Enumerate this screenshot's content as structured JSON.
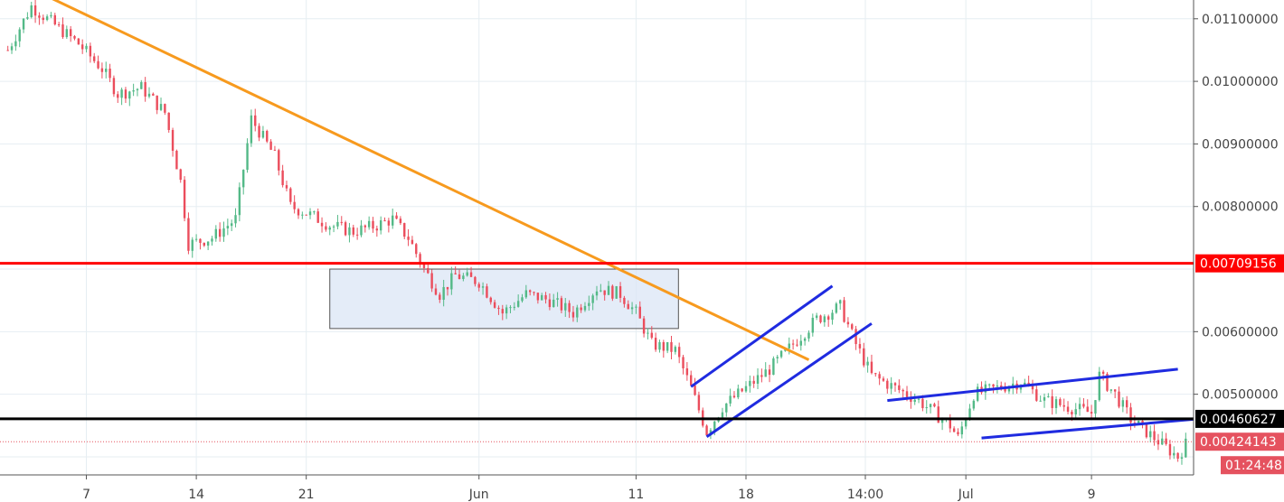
{
  "chart_data": {
    "type": "candlestick",
    "x_axis": {
      "tick_labels": [
        "7",
        "14",
        "21",
        "Jun",
        "11",
        "18",
        "14:00",
        "Jul",
        "9"
      ],
      "tick_days": [
        7,
        14,
        21,
        32,
        42,
        49,
        56.6,
        63,
        71
      ]
    },
    "y_axis": {
      "tick_labels": [
        "0.01100000",
        "0.01000000",
        "0.00900000",
        "0.00800000",
        "0.00600000",
        "0.00500000"
      ],
      "tick_values": [
        0.011,
        0.01,
        0.009,
        0.008,
        0.006,
        0.005
      ],
      "ylim": [
        0.00335,
        0.0113
      ],
      "position": "right"
    },
    "xlim_days": [
      1.5,
      77.5
    ],
    "grid": true,
    "close_path": [
      [
        2,
        0.0105
      ],
      [
        3.5,
        0.0112
      ],
      [
        5,
        0.0109
      ],
      [
        6.5,
        0.0106
      ],
      [
        8,
        0.0102
      ],
      [
        9,
        0.0098
      ],
      [
        10.5,
        0.0099
      ],
      [
        12,
        0.0095
      ],
      [
        13,
        0.0084
      ],
      [
        13.5,
        0.0074
      ],
      [
        15,
        0.0075
      ],
      [
        16.5,
        0.0078
      ],
      [
        17.5,
        0.0094
      ],
      [
        19,
        0.0088
      ],
      [
        20,
        0.008
      ],
      [
        21,
        0.0079
      ],
      [
        22.5,
        0.0077
      ],
      [
        24,
        0.0076
      ],
      [
        25.5,
        0.0077
      ],
      [
        26.5,
        0.0078
      ],
      [
        27.5,
        0.0075
      ],
      [
        28.5,
        0.007
      ],
      [
        29.5,
        0.0066
      ],
      [
        30.5,
        0.0069
      ],
      [
        32,
        0.0068
      ],
      [
        33.5,
        0.0063
      ],
      [
        35,
        0.0066
      ],
      [
        36.5,
        0.0065
      ],
      [
        38,
        0.0063
      ],
      [
        39.5,
        0.0067
      ],
      [
        41,
        0.0066
      ],
      [
        42,
        0.0063
      ],
      [
        43,
        0.0058
      ],
      [
        44.5,
        0.0057
      ],
      [
        45.5,
        0.0051
      ],
      [
        46.5,
        0.0044
      ],
      [
        47.5,
        0.0048
      ],
      [
        49,
        0.0051
      ],
      [
        50.5,
        0.0054
      ],
      [
        52,
        0.0058
      ],
      [
        53.5,
        0.0062
      ],
      [
        55,
        0.0064
      ],
      [
        56,
        0.0058
      ],
      [
        57,
        0.0053
      ],
      [
        58.5,
        0.0051
      ],
      [
        60,
        0.0049
      ],
      [
        61,
        0.0047
      ],
      [
        62,
        0.0045
      ],
      [
        62.5,
        0.0043
      ],
      [
        63.5,
        0.005
      ],
      [
        65,
        0.0051
      ],
      [
        66.5,
        0.0052
      ],
      [
        68,
        0.0049
      ],
      [
        69.5,
        0.0048
      ],
      [
        71,
        0.0047
      ],
      [
        71.5,
        0.0053
      ],
      [
        72.5,
        0.005
      ],
      [
        73.5,
        0.0046
      ],
      [
        74.5,
        0.0044
      ],
      [
        75.5,
        0.0042
      ],
      [
        76.5,
        0.004
      ],
      [
        77,
        0.0042
      ]
    ],
    "horizontal_levels": [
      {
        "price": 0.00709156,
        "label": "0.00709156",
        "color": "#ff0000"
      },
      {
        "price": 0.00460627,
        "label": "0.00460627",
        "color": "#000000"
      }
    ],
    "current_price": {
      "label": "0.00424143",
      "value": 0.00424143,
      "color": "#e5525f",
      "countdown": "01:24:48"
    },
    "trendline": {
      "color": "#f79a1e",
      "points": [
        [
          2.5,
          0.0116
        ],
        [
          53,
          0.00555
        ]
      ]
    },
    "range_box": {
      "x": [
        22.5,
        44.7
      ],
      "y": [
        0.00605,
        0.007
      ],
      "fill": "#dbe6f5",
      "stroke": "#555555"
    },
    "channels": [
      {
        "color": "#1f2be0",
        "lines": [
          [
            [
              45.5,
              0.00512
            ],
            [
              54.5,
              0.00673
            ]
          ],
          [
            [
              46.5,
              0.00432
            ],
            [
              57,
              0.00613
            ]
          ]
        ]
      },
      {
        "color": "#1f2be0",
        "lines": [
          [
            [
              58,
              0.0049
            ],
            [
              76.5,
              0.0054
            ]
          ],
          [
            [
              64,
              0.0043
            ],
            [
              77.5,
              0.0046
            ]
          ]
        ]
      }
    ],
    "colors": {
      "up": "#53b987",
      "down": "#eb4d5c",
      "grid": "#e6eef2"
    }
  }
}
